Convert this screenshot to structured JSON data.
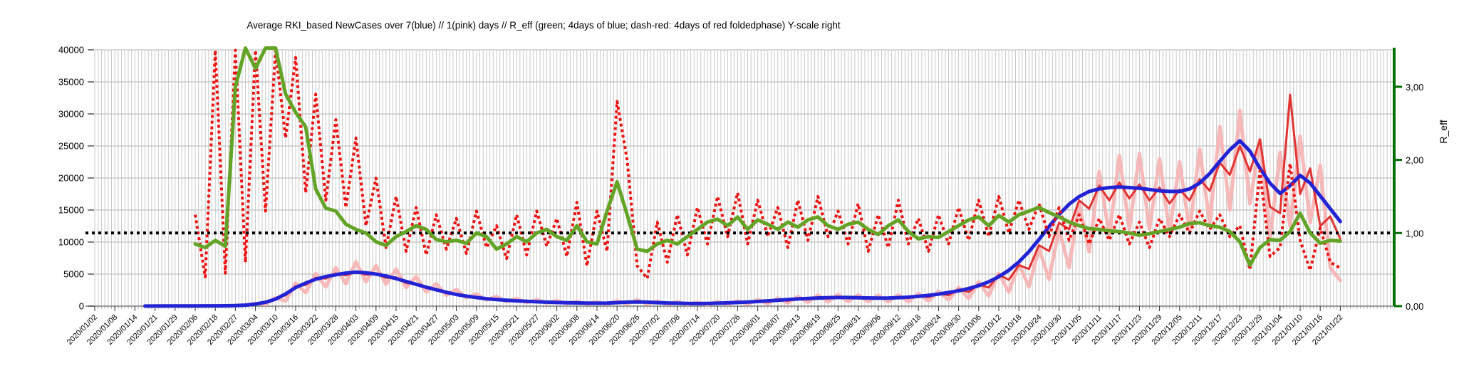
{
  "chart_data": {
    "type": "line",
    "title": "Average RKI_based NewCases over 7(blue) // 1(pink) days //  R_eff (green; 4days of blue; dash-red: 4days of red foldedphase) Y-scale right",
    "left_axis": {
      "min": 0,
      "max": 40000,
      "tick_step": 5000,
      "tick_labels": [
        "0",
        "5000",
        "10000",
        "15000",
        "20000",
        "25000",
        "30000",
        "35000",
        "40000"
      ]
    },
    "right_axis": {
      "title": "R_eff",
      "min": 0,
      "max": 3.5,
      "tick_values": [
        0,
        1,
        2,
        3
      ],
      "tick_labels": [
        "0,00",
        "1,00",
        "2,00",
        "3,00"
      ]
    },
    "x_axis": {
      "samples_per_tick_interval": 2,
      "n_samples": 125,
      "tick_labels": [
        "2020/01/02",
        "2020/01/08",
        "2020/01/14",
        "2020/01/21",
        "2020/01/29",
        "2020/02/06",
        "2020/02/18",
        "2020/02/27",
        "2020/03/04",
        "2020/03/10",
        "2020/03/16",
        "2020/03/22",
        "2020/03/28",
        "2020/04/03",
        "2020/04/09",
        "2020/04/15",
        "2020/04/21",
        "2020/04/27",
        "2020/05/03",
        "2020/05/09",
        "2020/05/15",
        "2020/05/21",
        "2020/05/27",
        "2020/06/02",
        "2020/06/08",
        "2020/06/14",
        "2020/06/20",
        "2020/06/26",
        "2020/07/02",
        "2020/07/08",
        "2020/07/14",
        "2020/07/20",
        "2020/07/26",
        "2020/08/01",
        "2020/08/07",
        "2020/08/13",
        "2020/08/19",
        "2020/08/25",
        "2020/08/31",
        "2020/09/06",
        "2020/09/12",
        "2020/09/18",
        "2020/09/24",
        "2020/09/30",
        "2020/10/06",
        "2020/10/12",
        "2020/10/18",
        "2020/10/24",
        "2020/10/30",
        "2020/11/05",
        "2020/11/11",
        "2020/11/17",
        "2020/11/23",
        "2020/11/29",
        "2020/12/05",
        "2020/12/11",
        "2020/12/17",
        "2020/12/23",
        "2020/12/29",
        "2021/01/04",
        "2021/01/10",
        "2021/01/16",
        "2021/01/22"
      ]
    },
    "reference_line": {
      "axis": "right",
      "value": 1.0,
      "color": "#000000",
      "style": "dotted"
    },
    "grid": {
      "vertical_minor_per_interval": 6,
      "color": "#c9c9c9",
      "h_color": "#b6b6b6"
    },
    "colors": {
      "blue": "#2323d6",
      "pink": "#f6b8b8",
      "red": "#e23333",
      "green": "#63a426",
      "dash_red": "#ee1111",
      "right_axis_green": "#007000",
      "reference": "#000000",
      "background": "#ffffff"
    },
    "series": [
      {
        "name": "new_cases_avg_1day_pink",
        "axis": "left",
        "color": "#f6b8b8",
        "width": 5,
        "dash": null,
        "values": [
          null,
          null,
          null,
          null,
          null,
          10,
          15,
          10,
          20,
          15,
          30,
          20,
          60,
          35,
          90,
          150,
          420,
          280,
          1300,
          800,
          3600,
          2100,
          5100,
          3000,
          6000,
          3500,
          6900,
          3800,
          6300,
          3400,
          5800,
          2900,
          4600,
          2200,
          3500,
          1700,
          2600,
          1300,
          1900,
          950,
          1500,
          700,
          1200,
          560,
          1000,
          480,
          850,
          400,
          750,
          330,
          650,
          300,
          800,
          380,
          950,
          350,
          780,
          300,
          650,
          260,
          560,
          230,
          650,
          280,
          800,
          330,
          1000,
          400,
          1250,
          500,
          1500,
          600,
          1700,
          680,
          1800,
          720,
          1750,
          700,
          1700,
          680,
          1750,
          700,
          1950,
          800,
          2300,
          950,
          2900,
          1200,
          3800,
          1600,
          5100,
          2200,
          6600,
          3000,
          9000,
          4200,
          12000,
          6000,
          16000,
          8500,
          21000,
          11000,
          23500,
          12000,
          23800,
          12000,
          23000,
          11500,
          22500,
          11800,
          24500,
          13000,
          28000,
          15000,
          30500,
          16000,
          26000,
          10500,
          24000,
          12500,
          26500,
          13000,
          22000,
          6000,
          4000
        ]
      },
      {
        "name": "new_cases_avg_4day_red",
        "axis": "left",
        "color": "#e23333",
        "width": 3,
        "dash": null,
        "values": [
          null,
          null,
          null,
          null,
          null,
          10,
          12,
          18,
          22,
          28,
          32,
          38,
          55,
          90,
          60,
          160,
          380,
          520,
          1250,
          1700,
          3100,
          3300,
          4400,
          4300,
          5100,
          4800,
          5400,
          4900,
          5100,
          4400,
          4500,
          3600,
          3500,
          2800,
          2700,
          2000,
          1900,
          1450,
          1400,
          1050,
          1100,
          850,
          900,
          680,
          720,
          560,
          620,
          480,
          540,
          430,
          480,
          430,
          580,
          640,
          720,
          560,
          600,
          440,
          480,
          380,
          430,
          380,
          500,
          450,
          620,
          540,
          780,
          660,
          1000,
          840,
          1200,
          1050,
          1380,
          1180,
          1450,
          1250,
          1400,
          1200,
          1350,
          1180,
          1400,
          1250,
          1650,
          1400,
          2000,
          1700,
          2600,
          2200,
          3400,
          2900,
          4900,
          4100,
          6400,
          5800,
          9500,
          8600,
          13000,
          12000,
          16500,
          15200,
          18800,
          16500,
          19300,
          16800,
          19000,
          16500,
          18500,
          16000,
          18200,
          16500,
          19800,
          18000,
          22400,
          20500,
          25000,
          21000,
          26000,
          15500,
          14500,
          33000,
          17500,
          21500,
          12500,
          14000,
          10500
        ]
      },
      {
        "name": "new_cases_avg_7day_blue",
        "axis": "left",
        "color": "#2323d6",
        "width": 5,
        "dash": null,
        "values": [
          null,
          null,
          null,
          null,
          null,
          10,
          15,
          20,
          25,
          30,
          35,
          40,
          50,
          60,
          80,
          150,
          320,
          600,
          1100,
          1900,
          2900,
          3600,
          4200,
          4600,
          4900,
          5150,
          5300,
          5200,
          5000,
          4700,
          4300,
          3850,
          3400,
          2950,
          2550,
          2150,
          1820,
          1560,
          1340,
          1160,
          1020,
          910,
          820,
          740,
          680,
          620,
          570,
          530,
          500,
          470,
          450,
          470,
          540,
          620,
          660,
          620,
          550,
          490,
          450,
          420,
          400,
          420,
          460,
          510,
          570,
          640,
          720,
          820,
          920,
          1020,
          1120,
          1200,
          1270,
          1320,
          1350,
          1340,
          1310,
          1280,
          1260,
          1270,
          1320,
          1400,
          1520,
          1680,
          1880,
          2120,
          2400,
          2750,
          3200,
          3800,
          4600,
          5600,
          6900,
          8500,
          10400,
          12400,
          14300,
          15900,
          17100,
          17900,
          18300,
          18500,
          18600,
          18500,
          18400,
          18200,
          18000,
          17900,
          17900,
          18300,
          19200,
          20700,
          22600,
          24400,
          25800,
          24200,
          21500,
          19200,
          17600,
          18800,
          20400,
          19200,
          17200,
          15200,
          13200
        ]
      },
      {
        "name": "r_eff_raw_dash_red",
        "axis": "right",
        "color": "#ee1111",
        "width": 4,
        "dash": "4 4",
        "values": [
          null,
          null,
          null,
          null,
          null,
          null,
          null,
          null,
          null,
          null,
          1.25,
          0.4,
          3.5,
          0.45,
          3.5,
          0.6,
          3.5,
          1.3,
          3.5,
          2.3,
          3.4,
          1.55,
          2.9,
          1.45,
          2.55,
          1.35,
          2.3,
          1.1,
          1.75,
          0.8,
          1.5,
          0.75,
          1.35,
          0.7,
          1.25,
          0.78,
          1.2,
          0.72,
          1.3,
          0.8,
          1.1,
          0.65,
          1.25,
          0.7,
          1.3,
          0.82,
          1.2,
          0.68,
          1.42,
          0.55,
          1.3,
          0.75,
          2.8,
          2.0,
          0.55,
          0.38,
          1.15,
          0.6,
          1.25,
          0.7,
          1.35,
          0.85,
          1.5,
          0.95,
          1.55,
          0.85,
          1.45,
          0.95,
          1.35,
          0.8,
          1.45,
          0.9,
          1.5,
          0.95,
          1.3,
          0.85,
          1.4,
          0.75,
          1.25,
          0.8,
          1.45,
          0.85,
          1.2,
          0.75,
          1.25,
          0.85,
          1.35,
          0.9,
          1.45,
          0.95,
          1.5,
          1.0,
          1.45,
          1.05,
          1.4,
          0.95,
          1.35,
          0.9,
          1.25,
          0.85,
          1.2,
          0.9,
          1.25,
          0.85,
          1.15,
          0.8,
          1.2,
          0.95,
          1.25,
          1.0,
          1.3,
          1.05,
          1.25,
          0.95,
          1.1,
          0.5,
          1.85,
          0.68,
          0.8,
          1.95,
          0.9,
          0.49,
          1.07,
          0.6,
          0.52
        ]
      },
      {
        "name": "r_eff_smooth_green",
        "axis": "right",
        "color": "#63a426",
        "width": 5,
        "dash": null,
        "values": [
          null,
          null,
          null,
          null,
          null,
          null,
          null,
          null,
          null,
          null,
          0.85,
          0.8,
          0.9,
          0.82,
          3.0,
          3.55,
          3.25,
          3.55,
          3.55,
          2.9,
          2.65,
          2.45,
          1.6,
          1.34,
          1.3,
          1.12,
          1.05,
          1.0,
          0.88,
          0.83,
          0.95,
          1.02,
          1.1,
          1.05,
          0.91,
          0.88,
          0.9,
          0.86,
          1.0,
          0.95,
          0.78,
          0.85,
          0.95,
          0.88,
          1.0,
          1.05,
          0.95,
          0.9,
          1.1,
          0.88,
          0.85,
          1.3,
          1.7,
          1.25,
          0.78,
          0.75,
          0.85,
          0.9,
          0.85,
          0.95,
          1.05,
          1.15,
          1.19,
          1.1,
          1.22,
          1.05,
          1.18,
          1.12,
          1.05,
          1.15,
          1.08,
          1.18,
          1.22,
          1.1,
          1.05,
          1.12,
          1.15,
          1.05,
          0.98,
          1.1,
          1.18,
          1.02,
          0.92,
          0.95,
          0.94,
          1.02,
          1.1,
          1.18,
          1.22,
          1.1,
          1.24,
          1.15,
          1.25,
          1.3,
          1.35,
          1.28,
          1.22,
          1.15,
          1.1,
          1.06,
          1.05,
          1.03,
          1.02,
          1.0,
          0.97,
          0.99,
          1.02,
          1.05,
          1.08,
          1.13,
          1.14,
          1.1,
          1.08,
          1.02,
          0.88,
          0.56,
          0.8,
          0.91,
          0.9,
          1.02,
          1.27,
          1.0,
          0.86,
          0.9,
          0.89
        ]
      }
    ]
  }
}
